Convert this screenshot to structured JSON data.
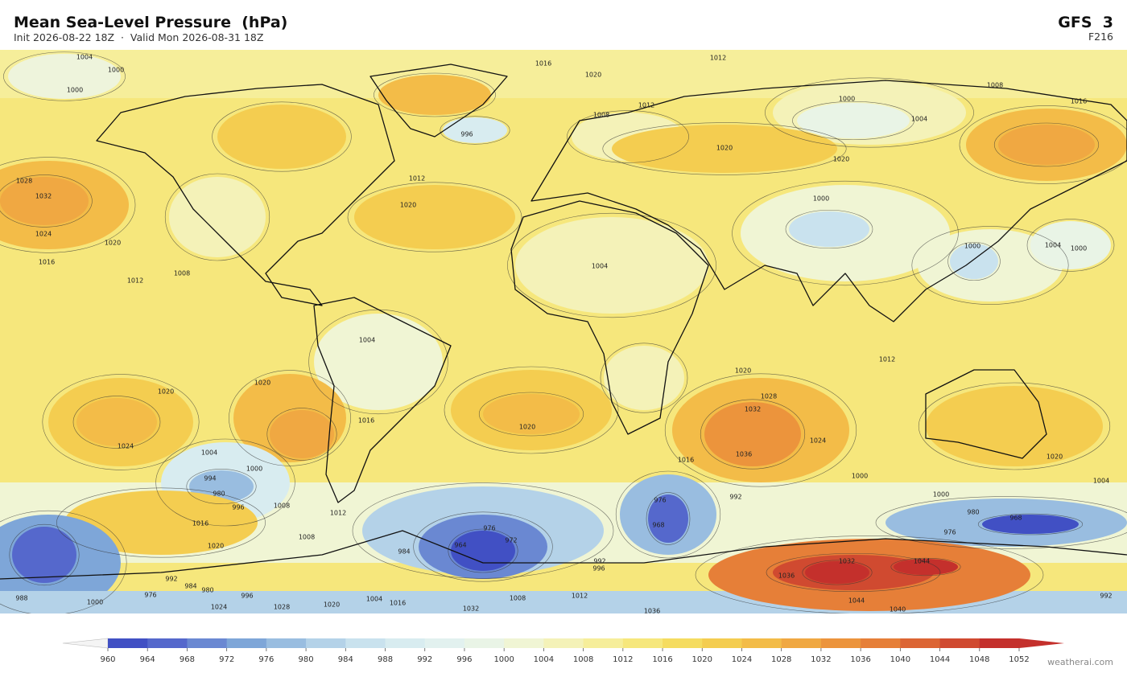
{
  "header": {
    "title": "Mean Sea-Level Pressure  (hPa)",
    "subtitle": "Init 2026-08-22 18Z  ·  Valid Mon 2026-08-31 18Z",
    "model": "GFS  3",
    "forecast_hour": "F216"
  },
  "map": {
    "contour_labels": [
      1004,
      1000,
      1000,
      1016,
      1020,
      1012,
      1008,
      1000,
      1004,
      1016,
      996,
      1012,
      1008,
      1012,
      1020,
      1028,
      1032,
      1024,
      1020,
      1016,
      1012,
      1008,
      1020,
      1020,
      1000,
      1004,
      1000,
      1000,
      1004,
      1004,
      1012,
      1020,
      1020,
      1020,
      1028,
      1032,
      1036,
      1024,
      1020,
      1016,
      1024,
      1004,
      1000,
      994,
      980,
      996,
      1008,
      1016,
      1020,
      1012,
      1008,
      1016,
      1000,
      1000,
      980,
      968,
      976,
      992,
      976,
      968,
      976,
      972,
      964,
      984,
      996,
      992,
      1032,
      1044,
      1036,
      1044,
      1040,
      1036,
      1032,
      1020,
      1028,
      1024,
      1000,
      988,
      1004,
      1016,
      1008,
      1012,
      976,
      980,
      984,
      992,
      996,
      992,
      1004,
      1020
    ]
  },
  "colorbar": {
    "ticks": [
      960,
      964,
      968,
      972,
      976,
      980,
      984,
      988,
      992,
      996,
      1000,
      1004,
      1008,
      1012,
      1016,
      1020,
      1024,
      1028,
      1032,
      1036,
      1040,
      1044,
      1048,
      1052
    ],
    "colors": [
      "#4150c4",
      "#5568cc",
      "#6a88d2",
      "#7ea6d8",
      "#99bde0",
      "#b4d2e8",
      "#c9e2ee",
      "#d8ecf0",
      "#e2f1ef",
      "#e9f4e6",
      "#f0f5d4",
      "#f4f2b8",
      "#f6ee9a",
      "#f6e77c",
      "#f5dc60",
      "#f4cd50",
      "#f3bc48",
      "#f0a842",
      "#ec943c",
      "#e67f38",
      "#dc6534",
      "#d04a30",
      "#c4302c"
    ]
  },
  "footer": {
    "credit": "weatherai.com"
  }
}
